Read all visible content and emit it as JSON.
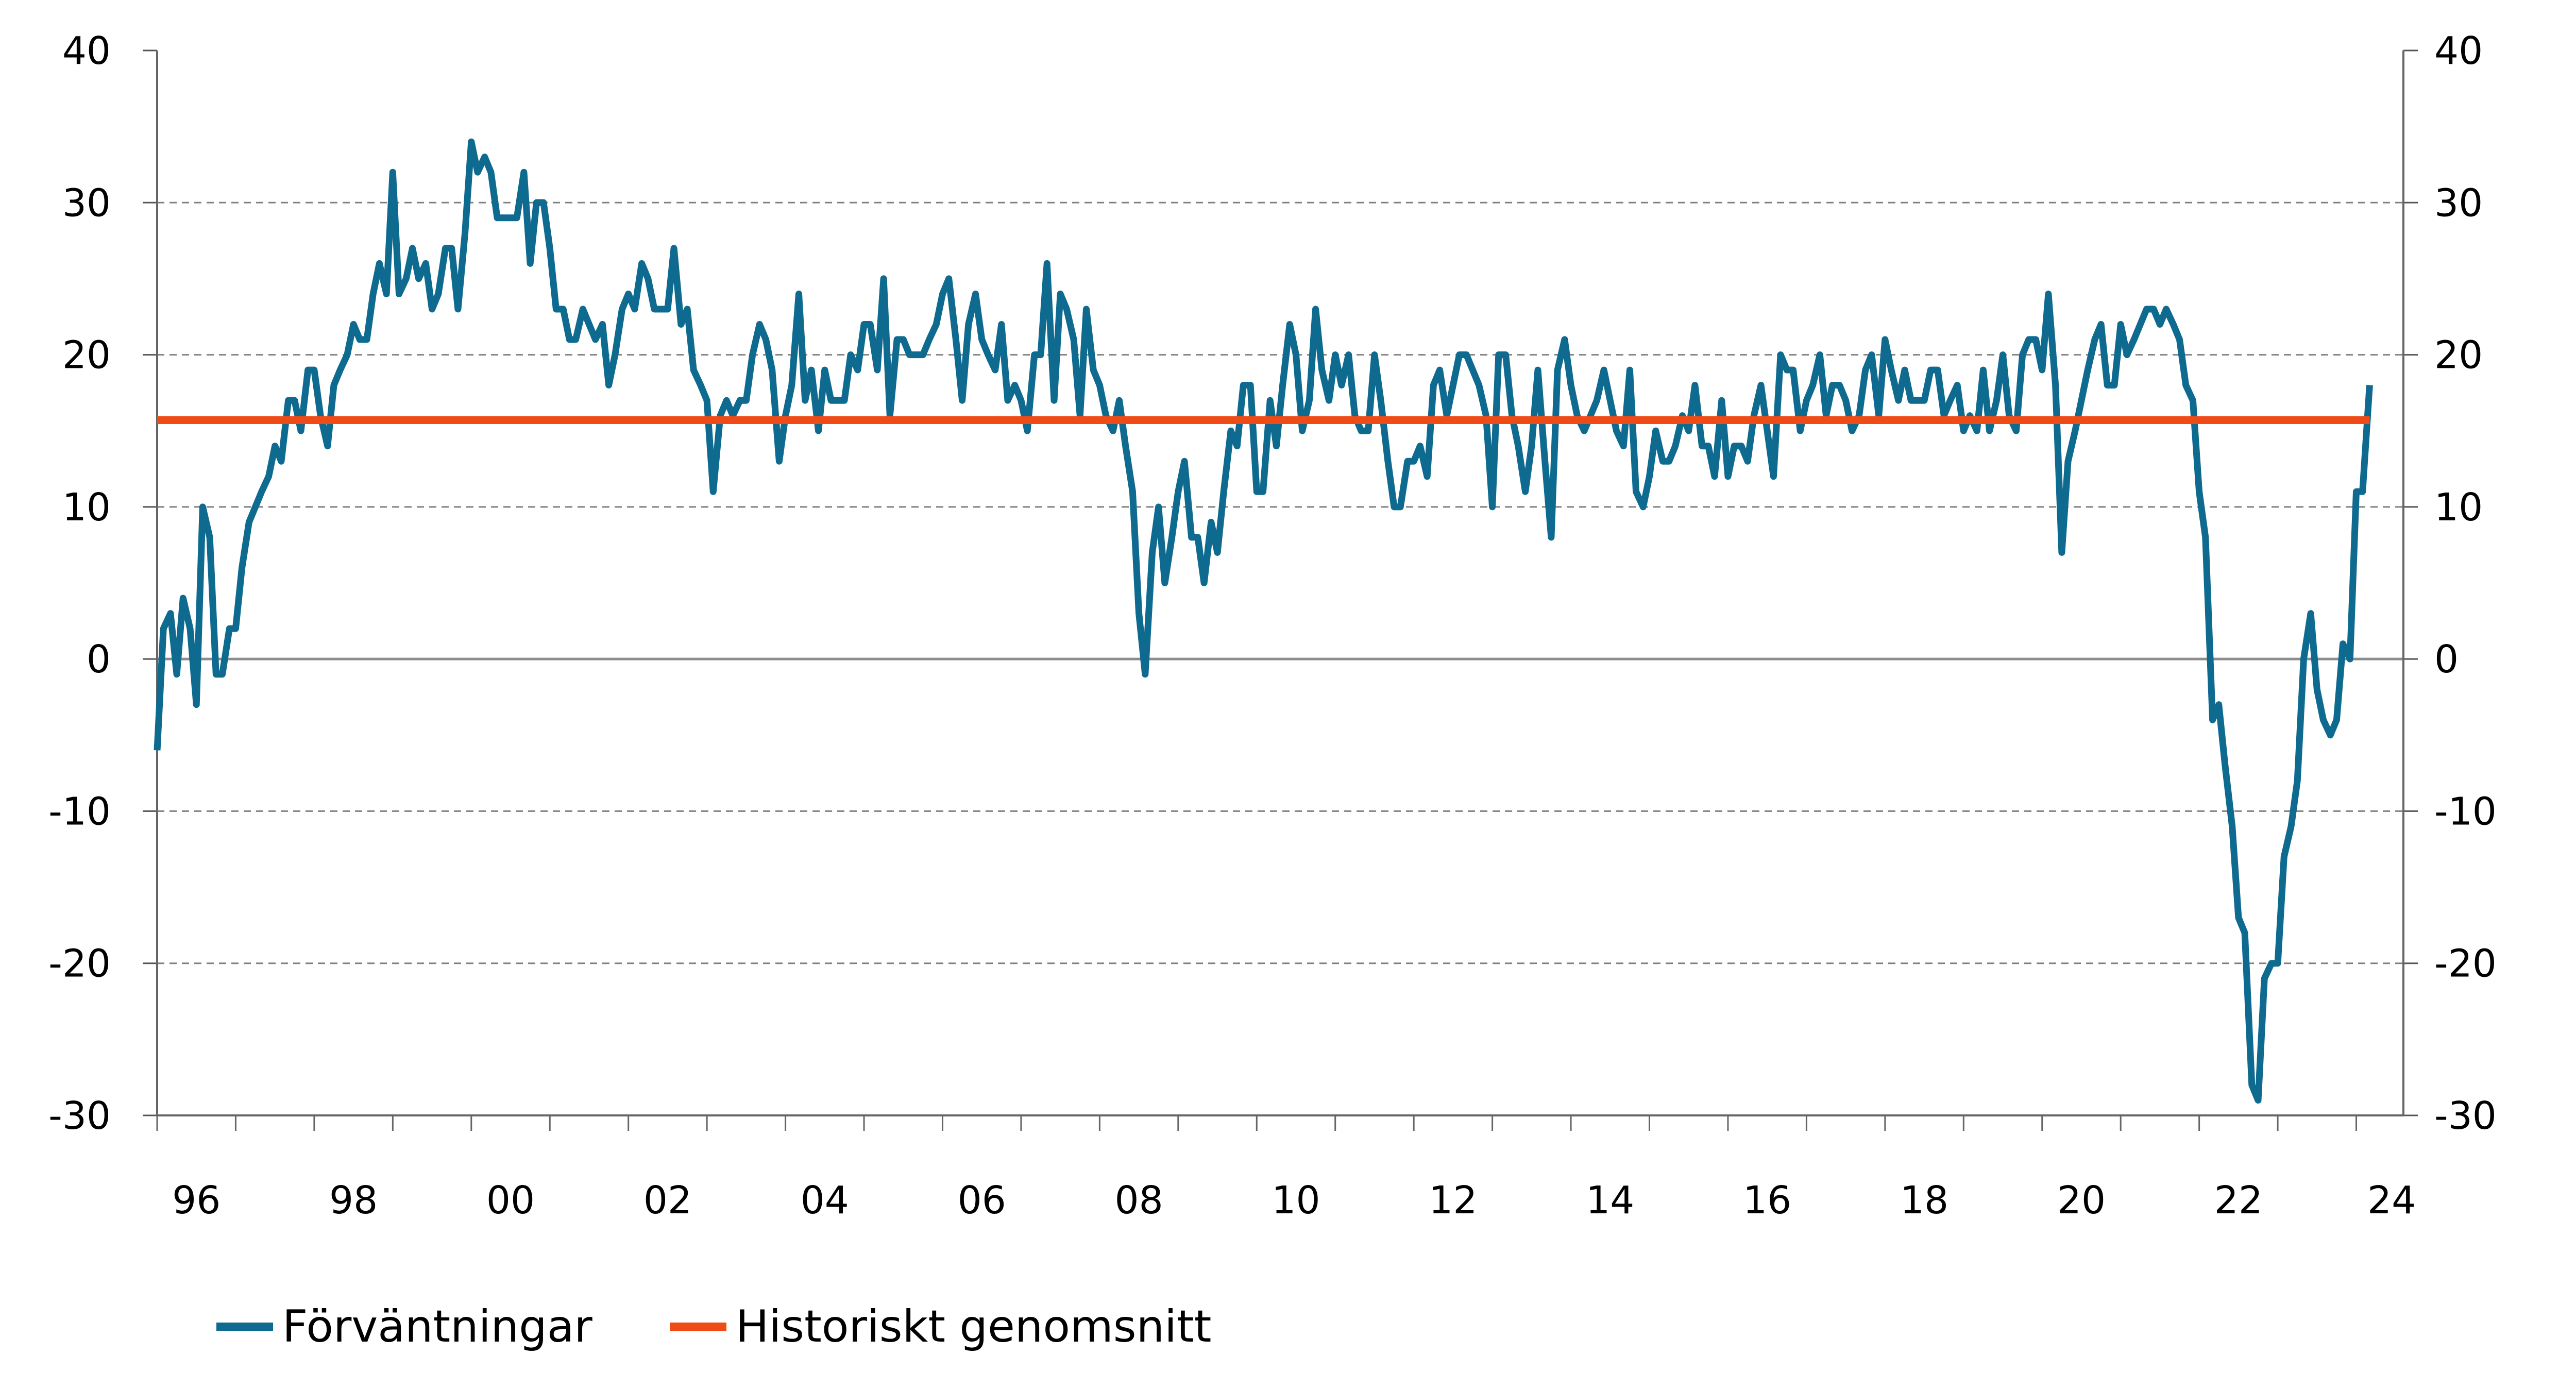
{
  "colors": {
    "expectations": "#0e6a8f",
    "average": "#ee4b16",
    "grid": "#808080",
    "zero": "#8c8c8c"
  },
  "chart_data": {
    "type": "line",
    "x_tick_labels": [
      "96",
      "98",
      "00",
      "02",
      "04",
      "06",
      "08",
      "10",
      "12",
      "14",
      "16",
      "18",
      "20",
      "22",
      "24"
    ],
    "y_ticks": [
      40,
      30,
      20,
      10,
      0,
      -10,
      -20,
      -30
    ],
    "ylim": [
      -30,
      40
    ],
    "xlim": [
      1996.0,
      2024.6
    ],
    "grid": "horizontal dashed",
    "legend_placement": "bottom-left",
    "series": [
      {
        "name": "Förväntningar",
        "color": "#0e6a8f",
        "x": [
          1996.0,
          1996.08,
          1996.17,
          1996.25,
          1996.33,
          1996.42,
          1996.5,
          1996.58,
          1996.67,
          1996.75,
          1996.83,
          1996.92,
          1997.0,
          1997.08,
          1997.17,
          1997.25,
          1997.33,
          1997.42,
          1997.5,
          1997.58,
          1997.67,
          1997.75,
          1997.83,
          1997.92,
          1998.0,
          1998.08,
          1998.17,
          1998.25,
          1998.33,
          1998.42,
          1998.5,
          1998.58,
          1998.67,
          1998.75,
          1998.83,
          1998.92,
          1999.0,
          1999.08,
          1999.17,
          1999.25,
          1999.33,
          1999.42,
          1999.5,
          1999.58,
          1999.67,
          1999.75,
          1999.83,
          1999.92,
          2000.0,
          2000.08,
          2000.17,
          2000.25,
          2000.33,
          2000.42,
          2000.5,
          2000.58,
          2000.67,
          2000.75,
          2000.83,
          2000.92,
          2001.0,
          2001.08,
          2001.17,
          2001.25,
          2001.33,
          2001.42,
          2001.5,
          2001.58,
          2001.67,
          2001.75,
          2001.83,
          2001.92,
          2002.0,
          2002.08,
          2002.17,
          2002.25,
          2002.33,
          2002.42,
          2002.5,
          2002.58,
          2002.67,
          2002.75,
          2002.83,
          2002.92,
          2003.0,
          2003.08,
          2003.17,
          2003.25,
          2003.33,
          2003.42,
          2003.5,
          2003.58,
          2003.67,
          2003.75,
          2003.83,
          2003.92,
          2004.0,
          2004.08,
          2004.17,
          2004.25,
          2004.33,
          2004.42,
          2004.5,
          2004.58,
          2004.67,
          2004.75,
          2004.83,
          2004.92,
          2005.0,
          2005.08,
          2005.17,
          2005.25,
          2005.33,
          2005.42,
          2005.5,
          2005.58,
          2005.67,
          2005.75,
          2005.83,
          2005.92,
          2006.0,
          2006.08,
          2006.17,
          2006.25,
          2006.33,
          2006.42,
          2006.5,
          2006.58,
          2006.67,
          2006.75,
          2006.83,
          2006.92,
          2007.0,
          2007.08,
          2007.17,
          2007.25,
          2007.33,
          2007.42,
          2007.5,
          2007.58,
          2007.67,
          2007.75,
          2007.83,
          2007.92,
          2008.0,
          2008.08,
          2008.17,
          2008.25,
          2008.33,
          2008.42,
          2008.5,
          2008.58,
          2008.67,
          2008.75,
          2008.83,
          2008.92,
          2009.0,
          2009.08,
          2009.17,
          2009.25,
          2009.33,
          2009.42,
          2009.5,
          2009.58,
          2009.67,
          2009.75,
          2009.83,
          2009.92,
          2010.0,
          2010.08,
          2010.17,
          2010.25,
          2010.33,
          2010.42,
          2010.5,
          2010.58,
          2010.67,
          2010.75,
          2010.83,
          2010.92,
          2011.0,
          2011.08,
          2011.17,
          2011.25,
          2011.33,
          2011.42,
          2011.5,
          2011.58,
          2011.67,
          2011.75,
          2011.83,
          2011.92,
          2012.0,
          2012.08,
          2012.17,
          2012.25,
          2012.33,
          2012.42,
          2012.5,
          2012.58,
          2012.67,
          2012.75,
          2012.83,
          2012.92,
          2013.0,
          2013.08,
          2013.17,
          2013.25,
          2013.33,
          2013.42,
          2013.5,
          2013.58,
          2013.67,
          2013.75,
          2013.83,
          2013.92,
          2014.0,
          2014.08,
          2014.17,
          2014.25,
          2014.33,
          2014.42,
          2014.5,
          2014.58,
          2014.67,
          2014.75,
          2014.83,
          2014.92,
          2015.0,
          2015.08,
          2015.17,
          2015.25,
          2015.33,
          2015.42,
          2015.5,
          2015.58,
          2015.67,
          2015.75,
          2015.83,
          2015.92,
          2016.0,
          2016.08,
          2016.17,
          2016.25,
          2016.33,
          2016.42,
          2016.5,
          2016.58,
          2016.67,
          2016.75,
          2016.83,
          2016.92,
          2017.0,
          2017.08,
          2017.17,
          2017.25,
          2017.33,
          2017.42,
          2017.5,
          2017.58,
          2017.67,
          2017.75,
          2017.83,
          2017.92,
          2018.0,
          2018.08,
          2018.17,
          2018.25,
          2018.33,
          2018.42,
          2018.5,
          2018.58,
          2018.67,
          2018.75,
          2018.83,
          2018.92,
          2019.0,
          2019.08,
          2019.17,
          2019.25,
          2019.33,
          2019.42,
          2019.5,
          2019.58,
          2019.67,
          2019.75,
          2019.83,
          2019.92,
          2020.0,
          2020.08,
          2020.17,
          2020.25,
          2020.33,
          2020.42,
          2020.5,
          2020.58,
          2020.67,
          2020.75,
          2020.83,
          2020.92,
          2021.0,
          2021.08,
          2021.17,
          2021.25,
          2021.33,
          2021.42,
          2021.5,
          2021.58,
          2021.67,
          2021.75,
          2021.83,
          2021.92,
          2022.0,
          2022.08,
          2022.17,
          2022.25,
          2022.33,
          2022.42,
          2022.5,
          2022.58,
          2022.67,
          2022.75,
          2022.83,
          2022.92,
          2023.0,
          2023.08,
          2023.17,
          2023.25,
          2023.33,
          2023.42,
          2023.5,
          2023.58,
          2023.67,
          2023.75,
          2023.83,
          2023.92,
          2024.0,
          2024.08,
          2024.17
        ],
        "y": [
          -6,
          2,
          3,
          -1,
          4,
          2,
          -3,
          10,
          8,
          -1,
          -1,
          2,
          2,
          6,
          9,
          10,
          11,
          12,
          14,
          13,
          17,
          17,
          15,
          19,
          19,
          16,
          14,
          18,
          19,
          20,
          22,
          21,
          21,
          24,
          26,
          24,
          32,
          24,
          25,
          27,
          25,
          26,
          23,
          24,
          27,
          27,
          23,
          28,
          34,
          32,
          33,
          32,
          29,
          29,
          29,
          29,
          32,
          26,
          30,
          30,
          27,
          23,
          23,
          21,
          21,
          23,
          22,
          21,
          22,
          18,
          20,
          23,
          24,
          23,
          26,
          25,
          23,
          23,
          23,
          27,
          22,
          23,
          19,
          18,
          17,
          11,
          16,
          17,
          16,
          17,
          17,
          20,
          22,
          21,
          19,
          13,
          16,
          18,
          24,
          17,
          19,
          15,
          19,
          17,
          17,
          17,
          20,
          19,
          22,
          22,
          19,
          25,
          16,
          21,
          21,
          20,
          20,
          20,
          21,
          22,
          24,
          25,
          21,
          17,
          22,
          24,
          21,
          20,
          19,
          22,
          17,
          18,
          17,
          15,
          20,
          20,
          26,
          17,
          24,
          23,
          21,
          16,
          23,
          19,
          18,
          16,
          15,
          17,
          14,
          11,
          3,
          -1,
          7,
          10,
          5,
          8,
          11,
          13,
          8,
          8,
          5,
          9,
          7,
          11,
          15,
          14,
          18,
          18,
          11,
          11,
          17,
          14,
          18,
          22,
          20,
          15,
          17,
          23,
          19,
          17,
          20,
          18,
          20,
          16,
          15,
          15,
          20,
          17,
          13,
          10,
          10,
          13,
          13,
          14,
          12,
          18,
          19,
          16,
          18,
          20,
          20,
          19,
          18,
          16,
          10,
          20,
          20,
          16,
          14,
          11,
          14,
          19,
          13,
          8,
          19,
          21,
          18,
          16,
          15,
          16,
          17,
          19,
          17,
          15,
          14,
          19,
          11,
          10,
          12,
          15,
          13,
          13,
          14,
          16,
          15,
          18,
          14,
          14,
          12,
          17,
          12,
          14,
          14,
          13,
          16,
          18,
          15,
          12,
          20,
          19,
          19,
          15,
          17,
          18,
          20,
          16,
          18,
          18,
          17,
          15,
          16,
          19,
          20,
          16,
          21,
          19,
          17,
          19,
          17,
          17,
          17,
          19,
          19,
          16,
          17,
          18,
          15,
          16,
          15,
          19,
          15,
          17,
          20,
          16,
          15,
          20,
          21,
          21,
          19,
          24,
          18,
          7,
          13,
          15,
          17,
          19,
          21,
          22,
          18,
          18,
          22,
          20,
          21,
          22,
          23,
          23,
          22,
          23,
          22,
          21,
          18,
          17,
          11,
          8,
          -4,
          -3,
          -7,
          -11,
          -17,
          -18,
          -28,
          -29,
          -21,
          -20,
          -20,
          -13,
          -11,
          -8,
          0,
          3,
          -2,
          -4,
          -5,
          -4,
          1,
          0,
          11,
          11,
          18
        ]
      },
      {
        "name": "Historiskt genomsnitt",
        "color": "#ee4b16",
        "x": [
          1996.0,
          2024.17
        ],
        "y": [
          15.7,
          15.7
        ]
      }
    ]
  }
}
